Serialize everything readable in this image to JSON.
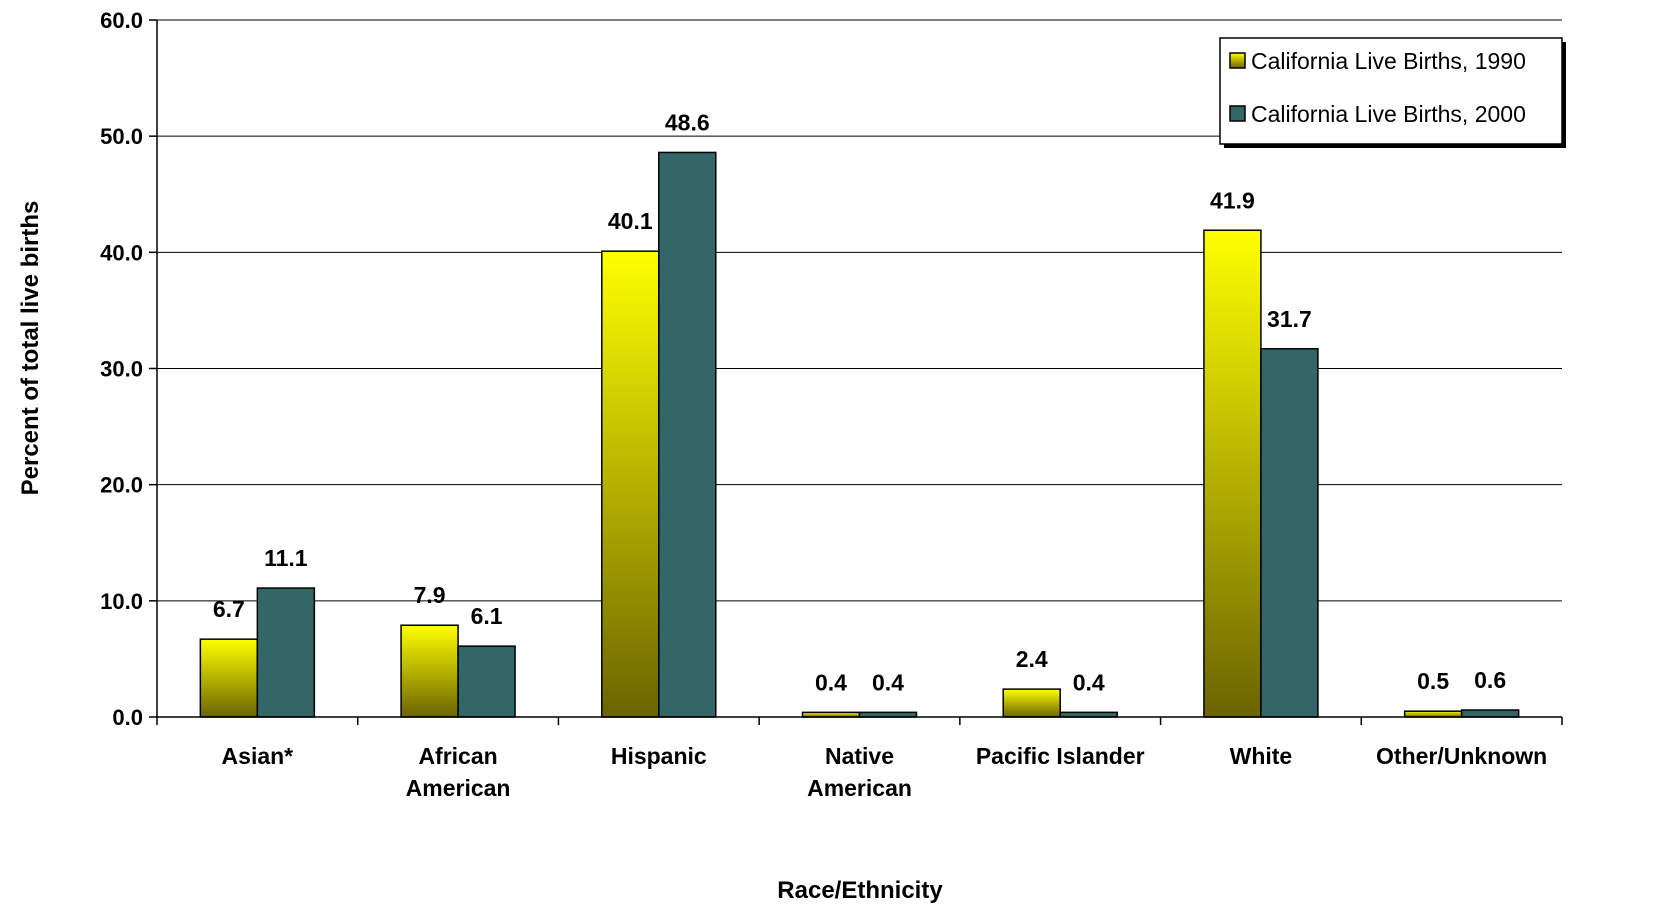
{
  "chart_data": {
    "type": "bar",
    "xlabel": "Race/Ethnicity",
    "ylabel": "Percent of total live births",
    "ylim": [
      0,
      60
    ],
    "yticks": [
      "0.0",
      "10.0",
      "20.0",
      "30.0",
      "40.0",
      "50.0",
      "60.0"
    ],
    "grid": true,
    "legend_position": "top-right",
    "categories": [
      [
        "Asian*"
      ],
      [
        "African",
        "American"
      ],
      [
        "Hispanic"
      ],
      [
        "Native",
        "American"
      ],
      [
        "Pacific Islander"
      ],
      [
        "White"
      ],
      [
        "Other/Unknown"
      ]
    ],
    "series": [
      {
        "name": "California Live Births, 1990",
        "color_top": "#ffff00",
        "color_bottom": "#6b6400",
        "values": [
          6.7,
          7.9,
          40.1,
          0.4,
          2.4,
          41.9,
          0.5
        ],
        "labels": [
          "6.7",
          "7.9",
          "40.1",
          "0.4",
          "2.4",
          "41.9",
          "0.5"
        ]
      },
      {
        "name": "California Live Births, 2000",
        "color": "#336666",
        "values": [
          11.1,
          6.1,
          48.6,
          0.4,
          0.4,
          31.7,
          0.6
        ],
        "labels": [
          "11.1",
          "6.1",
          "48.6",
          "0.4",
          "0.4",
          "31.7",
          "0.6"
        ]
      }
    ]
  }
}
